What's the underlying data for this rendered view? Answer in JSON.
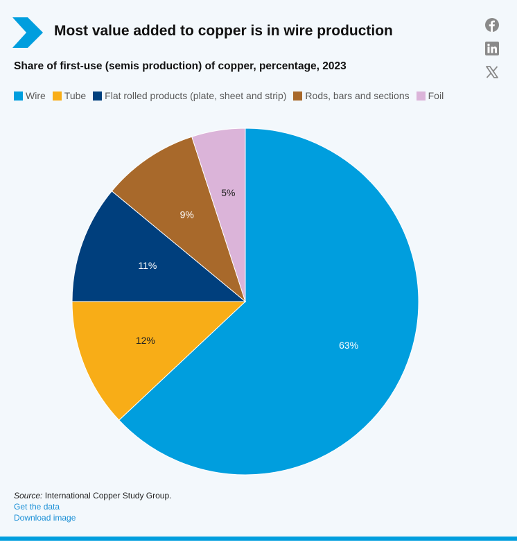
{
  "header": {
    "title": "Most value added to copper is in wire production",
    "subtitle": "Share of first-use (semis production) of copper, percentage, 2023"
  },
  "share_icons": [
    "facebook-icon",
    "linkedin-icon",
    "x-icon"
  ],
  "colors": {
    "accent": "#009ede",
    "background": "#f3f8fc"
  },
  "chart_data": {
    "type": "pie",
    "categories": [
      "Wire",
      "Tube",
      "Flat rolled products (plate, sheet and strip)",
      "Rods, bars and sections",
      "Foil"
    ],
    "values": [
      63,
      12,
      11,
      9,
      5
    ],
    "labels": [
      "63%",
      "12%",
      "11%",
      "9%",
      "5%"
    ],
    "colors": [
      "#009ede",
      "#f8ad17",
      "#003f7d",
      "#a8692b",
      "#dbb4d9"
    ],
    "legend_position": "top-left",
    "start_angle": "12 o'clock, clockwise"
  },
  "footer": {
    "source_label": "Source:",
    "source_text": "International Copper Study Group.",
    "get_data": "Get the data",
    "download_image": "Download image"
  }
}
